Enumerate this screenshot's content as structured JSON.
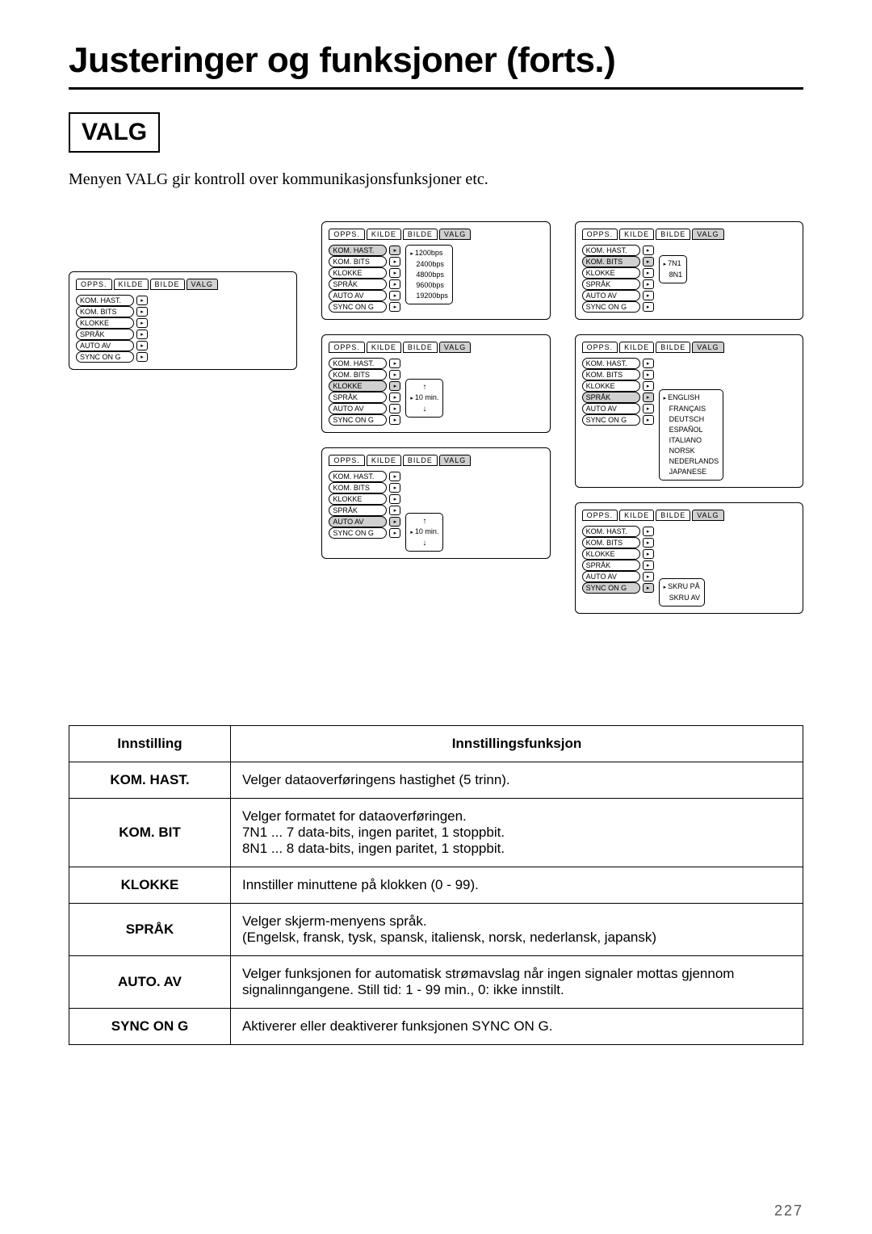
{
  "page": {
    "title": "Justeringer og funksjoner (forts.)",
    "section_label": "VALG",
    "intro": "Menyen VALG gir kontroll over kommunikasjonsfunksjoner etc.",
    "page_number": "227"
  },
  "menu_tabs": [
    "OPPS.",
    "KILDE",
    "BILDE",
    "VALG"
  ],
  "menu_items": [
    "KOM. HAST.",
    "KOM. BITS",
    "KLOKKE",
    "SPRÅK",
    "AUTO AV",
    "SYNC ON G"
  ],
  "cards": {
    "base": {
      "active_index": -1
    },
    "kom_hast": {
      "active_index": 0,
      "submenu": {
        "type": "list",
        "items": [
          {
            "label": "1200bps",
            "sel": true
          },
          {
            "label": "2400bps",
            "sel": false
          },
          {
            "label": "4800bps",
            "sel": false
          },
          {
            "label": "9600bps",
            "sel": false
          },
          {
            "label": "19200bps",
            "sel": false
          }
        ]
      }
    },
    "kom_bits": {
      "active_index": 1,
      "submenu": {
        "type": "list",
        "items": [
          {
            "label": "7N1",
            "sel": true
          },
          {
            "label": "8N1",
            "sel": false
          }
        ]
      }
    },
    "klokke": {
      "active_index": 2,
      "submenu": {
        "type": "spinner",
        "value": "10  min.",
        "sel": true
      }
    },
    "sprak": {
      "active_index": 3,
      "submenu": {
        "type": "list",
        "items": [
          {
            "label": "ENGLISH",
            "sel": true
          },
          {
            "label": "FRANÇAIS",
            "sel": false
          },
          {
            "label": "DEUTSCH",
            "sel": false
          },
          {
            "label": "ESPAÑOL",
            "sel": false
          },
          {
            "label": "ITALIANO",
            "sel": false
          },
          {
            "label": "NORSK",
            "sel": false
          },
          {
            "label": "NEDERLANDS",
            "sel": false
          },
          {
            "label": "JAPANESE",
            "sel": false
          }
        ]
      }
    },
    "auto_av": {
      "active_index": 4,
      "submenu": {
        "type": "spinner",
        "value": "10  min.",
        "sel": true
      }
    },
    "sync_on_g": {
      "active_index": 5,
      "submenu": {
        "type": "list",
        "items": [
          {
            "label": "SKRU PÅ",
            "sel": true
          },
          {
            "label": "SKRU AV",
            "sel": false
          }
        ]
      }
    }
  },
  "table": {
    "headers": [
      "Innstilling",
      "Innstillingsfunksjon"
    ],
    "rows": [
      {
        "name": "KOM. HAST.",
        "desc": "Velger dataoverføringens hastighet (5 trinn)."
      },
      {
        "name": "KOM. BIT",
        "desc": "Velger formatet for dataoverføringen.\n7N1 ... 7 data-bits, ingen paritet, 1 stoppbit.\n8N1 ... 8 data-bits, ingen paritet, 1 stoppbit."
      },
      {
        "name": "KLOKKE",
        "desc": "Innstiller minuttene på klokken (0 - 99)."
      },
      {
        "name": "SPRÅK",
        "desc": "Velger skjerm-menyens språk.\n(Engelsk, fransk, tysk, spansk, italiensk, norsk, nederlansk, japansk)"
      },
      {
        "name": "AUTO. AV",
        "desc": "Velger funksjonen for automatisk strømavslag når ingen signaler mottas gjennom signalinngangene. Still tid: 1 - 99 min., 0: ikke innstilt."
      },
      {
        "name": "SYNC ON G",
        "desc": "Aktiverer eller deaktiverer funksjonen SYNC ON G."
      }
    ]
  },
  "colors": {
    "highlight": "#d0d0d0",
    "border": "#000000",
    "background": "#ffffff"
  }
}
